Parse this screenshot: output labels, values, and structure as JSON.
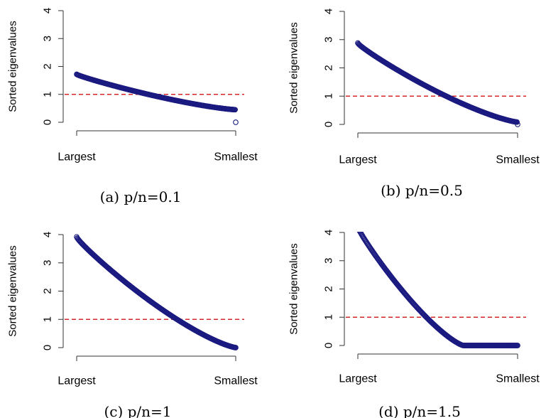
{
  "chart_data": [
    {
      "type": "scatter",
      "caption": "(a) p/n=0.1",
      "ylabel": "Sorted eigenvalues",
      "xlabel": "",
      "x_tick_labels": [
        "Largest",
        "Smallest"
      ],
      "ylim": [
        0,
        4
      ],
      "yticks": [
        0,
        1,
        2,
        3,
        4
      ],
      "reference_line": {
        "y": 1,
        "style": "dashed",
        "color": "#d62728"
      },
      "curve": {
        "start": 1.72,
        "end": 0.45,
        "shape": "mp",
        "zero_fraction": 0
      },
      "x": [
        0,
        0.05,
        0.1,
        0.15,
        0.2,
        0.25,
        0.3,
        0.35,
        0.4,
        0.45,
        0.5,
        0.55,
        0.6,
        0.65,
        0.7,
        0.75,
        0.8,
        0.85,
        0.9,
        0.95,
        1
      ],
      "y": [
        1.72,
        1.54,
        1.44,
        1.36,
        1.29,
        1.23,
        1.17,
        1.12,
        1.07,
        1.02,
        0.97,
        0.92,
        0.88,
        0.83,
        0.79,
        0.74,
        0.7,
        0.65,
        0.6,
        0.54,
        0.45
      ]
    },
    {
      "type": "scatter",
      "caption": "(b) p/n=0.5",
      "ylabel": "Sorted eigenvalues",
      "xlabel": "",
      "x_tick_labels": [
        "Largest",
        "Smallest"
      ],
      "ylim": [
        0,
        4
      ],
      "yticks": [
        0,
        1,
        2,
        3,
        4
      ],
      "reference_line": {
        "y": 1,
        "style": "dashed",
        "color": "#d62728"
      },
      "curve": {
        "start": 2.88,
        "end": 0.08,
        "shape": "mp",
        "zero_fraction": 0
      },
      "x": [
        0,
        0.05,
        0.1,
        0.15,
        0.2,
        0.25,
        0.3,
        0.35,
        0.4,
        0.45,
        0.5,
        0.55,
        0.6,
        0.65,
        0.7,
        0.75,
        0.8,
        0.85,
        0.9,
        0.95,
        1
      ],
      "y": [
        2.88,
        2.45,
        2.18,
        1.96,
        1.76,
        1.58,
        1.42,
        1.27,
        1.13,
        1.0,
        0.88,
        0.76,
        0.66,
        0.56,
        0.47,
        0.38,
        0.31,
        0.23,
        0.17,
        0.11,
        0.08
      ]
    },
    {
      "type": "scatter",
      "caption": "(c) p/n=1",
      "ylabel": "Sorted eigenvalues",
      "xlabel": "",
      "x_tick_labels": [
        "Largest",
        "Smallest"
      ],
      "ylim": [
        0,
        4
      ],
      "yticks": [
        0,
        1,
        2,
        3,
        4
      ],
      "reference_line": {
        "y": 1,
        "style": "dashed",
        "color": "#d62728"
      },
      "curve": {
        "start": 3.92,
        "end": 0.0,
        "shape": "mp",
        "zero_fraction": 0
      },
      "x": [
        0,
        0.05,
        0.1,
        0.15,
        0.2,
        0.25,
        0.3,
        0.35,
        0.4,
        0.45,
        0.5,
        0.55,
        0.6,
        0.65,
        0.7,
        0.75,
        0.8,
        0.85,
        0.9,
        0.95,
        1
      ],
      "y": [
        3.92,
        3.3,
        2.88,
        2.52,
        2.2,
        1.92,
        1.66,
        1.42,
        1.2,
        1.01,
        0.84,
        0.68,
        0.54,
        0.41,
        0.3,
        0.2,
        0.12,
        0.06,
        0.02,
        0.01,
        0.0
      ]
    },
    {
      "type": "scatter",
      "caption": "(d) p/n=1.5",
      "ylabel": "Sorted eigenvalues",
      "xlabel": "",
      "x_tick_labels": [
        "Largest",
        "Smallest"
      ],
      "ylim": [
        0,
        4
      ],
      "yticks": [
        0,
        1,
        2,
        3,
        4
      ],
      "reference_line": {
        "y": 1,
        "style": "dashed",
        "color": "#d62728"
      },
      "curve": {
        "start": 4.2,
        "end": 0.0,
        "shape": "mp",
        "zero_fraction": 0.34
      },
      "x": [
        0,
        0.05,
        0.1,
        0.15,
        0.2,
        0.25,
        0.3,
        0.35,
        0.4,
        0.45,
        0.5,
        0.55,
        0.6,
        0.65,
        0.66,
        0.7,
        0.8,
        0.9,
        1
      ],
      "y": [
        4.2,
        3.45,
        2.95,
        2.5,
        2.1,
        1.74,
        1.4,
        1.1,
        0.82,
        0.58,
        0.36,
        0.18,
        0.06,
        0.01,
        0.0,
        0.0,
        0.0,
        0.0,
        0.0
      ]
    }
  ],
  "colors": {
    "points": "#1a1a80",
    "reference_line": "#d62728",
    "axis": "#333333",
    "text": "#000000"
  }
}
